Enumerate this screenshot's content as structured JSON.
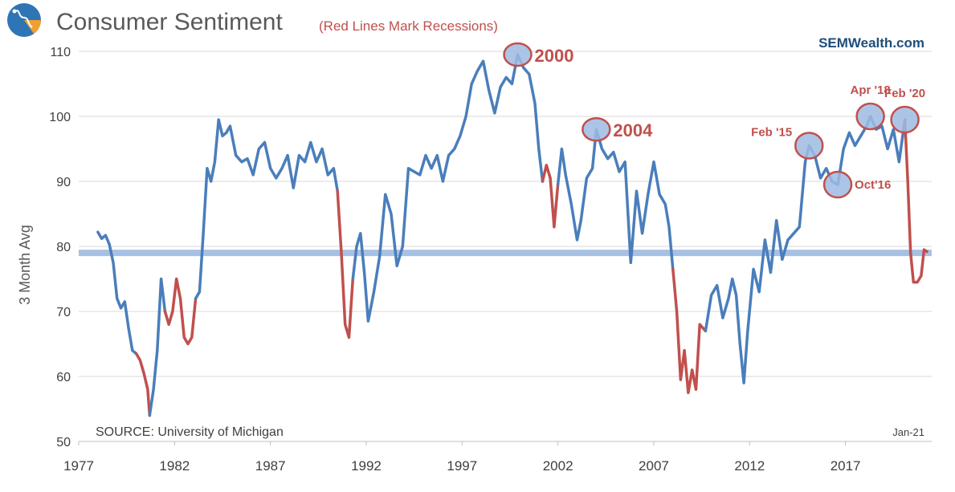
{
  "header": {
    "title": "Consumer Sentiment",
    "subtitle": "(Red Lines Mark Recessions)",
    "brand": "SEMWealth.com",
    "logo_icon": "semwealth-logo-icon"
  },
  "footer": {
    "source": "SOURCE:  University  of Michigan",
    "date_label": "Jan-21"
  },
  "colors": {
    "expansion": "#4a7ebb",
    "recession": "#c0504d",
    "reference_line": "#a6c1e3",
    "annotation_fill": "#9dbbe3",
    "annotation_stroke": "#c0504d",
    "title": "#595959",
    "brand": "#1f4e79"
  },
  "chart_data": {
    "type": "line",
    "title": "Consumer Sentiment",
    "ylabel": "3 Month Avg",
    "xlabel": "",
    "ylim": [
      50,
      112
    ],
    "xlim": [
      1977,
      2021.5
    ],
    "yticks": [
      50,
      60,
      70,
      80,
      90,
      100,
      110
    ],
    "xticks": [
      "1977",
      "1982",
      "1987",
      "1992",
      "1997",
      "2002",
      "2007",
      "2012",
      "2017"
    ],
    "reference_value": 79,
    "series": [
      {
        "name": "3 Month Avg",
        "points": [
          [
            1978.0,
            82.2
          ],
          [
            1978.2,
            81.2
          ],
          [
            1978.4,
            81.7
          ],
          [
            1978.6,
            80.3
          ],
          [
            1978.8,
            77.5
          ],
          [
            1979.0,
            72.0
          ],
          [
            1979.2,
            70.5
          ],
          [
            1979.4,
            71.5
          ],
          [
            1979.6,
            67.5
          ],
          [
            1979.8,
            64.0
          ],
          [
            1980.0,
            63.5
          ],
          [
            1980.2,
            62.5
          ],
          [
            1980.4,
            60.5
          ],
          [
            1980.6,
            58.0
          ],
          [
            1980.7,
            54.0
          ],
          [
            1980.9,
            58.0
          ],
          [
            1981.1,
            64.0
          ],
          [
            1981.3,
            75.0
          ],
          [
            1981.5,
            70.0
          ],
          [
            1981.7,
            68.0
          ],
          [
            1981.9,
            70.0
          ],
          [
            1982.1,
            75.0
          ],
          [
            1982.3,
            72.0
          ],
          [
            1982.5,
            66.0
          ],
          [
            1982.7,
            65.0
          ],
          [
            1982.9,
            66.0
          ],
          [
            1983.1,
            72.0
          ],
          [
            1983.3,
            73.0
          ],
          [
            1983.5,
            82.0
          ],
          [
            1983.7,
            92.0
          ],
          [
            1983.9,
            90.0
          ],
          [
            1984.1,
            93.0
          ],
          [
            1984.3,
            99.5
          ],
          [
            1984.5,
            97.0
          ],
          [
            1984.7,
            97.5
          ],
          [
            1984.9,
            98.5
          ],
          [
            1985.2,
            94.0
          ],
          [
            1985.5,
            93.0
          ],
          [
            1985.8,
            93.5
          ],
          [
            1986.1,
            91.0
          ],
          [
            1986.4,
            95.0
          ],
          [
            1986.7,
            96.0
          ],
          [
            1987.0,
            92.0
          ],
          [
            1987.3,
            90.5
          ],
          [
            1987.6,
            92.0
          ],
          [
            1987.9,
            94.0
          ],
          [
            1988.2,
            89.0
          ],
          [
            1988.5,
            94.0
          ],
          [
            1988.8,
            93.0
          ],
          [
            1989.1,
            96.0
          ],
          [
            1989.4,
            93.0
          ],
          [
            1989.7,
            95.0
          ],
          [
            1990.0,
            91.0
          ],
          [
            1990.3,
            92.0
          ],
          [
            1990.5,
            88.5
          ],
          [
            1990.7,
            79.0
          ],
          [
            1990.9,
            68.0
          ],
          [
            1991.1,
            66.0
          ],
          [
            1991.3,
            75.0
          ],
          [
            1991.5,
            80.0
          ],
          [
            1991.7,
            82.0
          ],
          [
            1991.9,
            76.0
          ],
          [
            1992.1,
            68.5
          ],
          [
            1992.4,
            73.0
          ],
          [
            1992.7,
            78.5
          ],
          [
            1993.0,
            88.0
          ],
          [
            1993.3,
            85.0
          ],
          [
            1993.6,
            77.0
          ],
          [
            1993.9,
            80.0
          ],
          [
            1994.2,
            92.0
          ],
          [
            1994.5,
            91.5
          ],
          [
            1994.8,
            91.0
          ],
          [
            1995.1,
            94.0
          ],
          [
            1995.4,
            92.0
          ],
          [
            1995.7,
            94.0
          ],
          [
            1996.0,
            90.0
          ],
          [
            1996.3,
            94.0
          ],
          [
            1996.6,
            95.0
          ],
          [
            1996.9,
            97.0
          ],
          [
            1997.2,
            100.0
          ],
          [
            1997.5,
            105.0
          ],
          [
            1997.8,
            107.0
          ],
          [
            1998.1,
            108.5
          ],
          [
            1998.4,
            104.0
          ],
          [
            1998.7,
            100.5
          ],
          [
            1999.0,
            104.5
          ],
          [
            1999.3,
            106.0
          ],
          [
            1999.6,
            105.0
          ],
          [
            1999.9,
            109.5
          ],
          [
            2000.2,
            107.5
          ],
          [
            2000.5,
            106.5
          ],
          [
            2000.8,
            102.0
          ],
          [
            2001.0,
            95.0
          ],
          [
            2001.2,
            90.0
          ],
          [
            2001.4,
            92.5
          ],
          [
            2001.6,
            90.5
          ],
          [
            2001.8,
            83.0
          ],
          [
            2002.0,
            89.5
          ],
          [
            2002.2,
            95.0
          ],
          [
            2002.4,
            91.0
          ],
          [
            2002.7,
            86.5
          ],
          [
            2003.0,
            81.0
          ],
          [
            2003.2,
            84.0
          ],
          [
            2003.5,
            90.5
          ],
          [
            2003.8,
            92.0
          ],
          [
            2004.0,
            98.0
          ],
          [
            2004.3,
            95.0
          ],
          [
            2004.6,
            93.5
          ],
          [
            2004.9,
            94.5
          ],
          [
            2005.2,
            91.5
          ],
          [
            2005.5,
            93.0
          ],
          [
            2005.8,
            77.5
          ],
          [
            2006.1,
            88.5
          ],
          [
            2006.4,
            82.0
          ],
          [
            2006.7,
            88.0
          ],
          [
            2007.0,
            93.0
          ],
          [
            2007.3,
            88.0
          ],
          [
            2007.6,
            86.5
          ],
          [
            2007.8,
            83.0
          ],
          [
            2008.0,
            76.5
          ],
          [
            2008.2,
            70.0
          ],
          [
            2008.4,
            59.5
          ],
          [
            2008.6,
            64.0
          ],
          [
            2008.8,
            57.5
          ],
          [
            2009.0,
            61.0
          ],
          [
            2009.2,
            58.0
          ],
          [
            2009.4,
            68.0
          ],
          [
            2009.7,
            67.0
          ],
          [
            2010.0,
            72.5
          ],
          [
            2010.3,
            74.0
          ],
          [
            2010.6,
            69.0
          ],
          [
            2010.9,
            72.0
          ],
          [
            2011.1,
            75.0
          ],
          [
            2011.3,
            72.5
          ],
          [
            2011.5,
            65.0
          ],
          [
            2011.7,
            59.0
          ],
          [
            2011.9,
            67.0
          ],
          [
            2012.2,
            76.5
          ],
          [
            2012.5,
            73.0
          ],
          [
            2012.8,
            81.0
          ],
          [
            2013.1,
            76.0
          ],
          [
            2013.4,
            84.0
          ],
          [
            2013.7,
            78.0
          ],
          [
            2014.0,
            81.0
          ],
          [
            2014.3,
            82.0
          ],
          [
            2014.6,
            83.0
          ],
          [
            2014.9,
            93.0
          ],
          [
            2015.1,
            95.5
          ],
          [
            2015.4,
            94.0
          ],
          [
            2015.7,
            90.5
          ],
          [
            2016.0,
            92.0
          ],
          [
            2016.3,
            90.0
          ],
          [
            2016.6,
            89.5
          ],
          [
            2016.9,
            95.0
          ],
          [
            2017.2,
            97.5
          ],
          [
            2017.5,
            95.5
          ],
          [
            2017.8,
            97.0
          ],
          [
            2018.1,
            98.5
          ],
          [
            2018.3,
            100.0
          ],
          [
            2018.6,
            98.0
          ],
          [
            2018.9,
            98.5
          ],
          [
            2019.2,
            95.0
          ],
          [
            2019.5,
            98.0
          ],
          [
            2019.8,
            93.0
          ],
          [
            2020.1,
            99.5
          ],
          [
            2020.25,
            90.0
          ],
          [
            2020.4,
            79.0
          ],
          [
            2020.55,
            74.5
          ],
          [
            2020.75,
            74.5
          ],
          [
            2020.95,
            75.5
          ],
          [
            2021.1,
            79.5
          ],
          [
            2021.25,
            79.2
          ]
        ]
      }
    ],
    "recessions": [
      {
        "label": "1980",
        "start": 1980.0,
        "end": 1980.6
      },
      {
        "label": "1981-82",
        "start": 1981.5,
        "end": 1982.9
      },
      {
        "label": "1990-91",
        "start": 1990.5,
        "end": 1991.2
      },
      {
        "label": "2001",
        "start": 2001.2,
        "end": 2001.9
      },
      {
        "label": "2007-09",
        "start": 2007.9,
        "end": 2009.5
      },
      {
        "label": "2020",
        "start": 2020.1,
        "end": 2021.5
      }
    ],
    "annotations": [
      {
        "label": "2000",
        "x": 1999.9,
        "y": 109.5,
        "label_pos": "right",
        "size": "large"
      },
      {
        "label": "2004",
        "x": 2004.0,
        "y": 98.0,
        "label_pos": "right",
        "size": "large"
      },
      {
        "label": "Feb '15",
        "x": 2015.1,
        "y": 95.5,
        "label_pos": "left",
        "size": "small"
      },
      {
        "label": "Oct'16",
        "x": 2016.6,
        "y": 89.5,
        "label_pos": "right",
        "size": "small"
      },
      {
        "label": "Apr '18",
        "x": 2018.3,
        "y": 100.0,
        "label_pos": "above",
        "size": "small"
      },
      {
        "label": "Feb '20",
        "x": 2020.1,
        "y": 99.5,
        "label_pos": "above",
        "size": "small"
      }
    ]
  }
}
